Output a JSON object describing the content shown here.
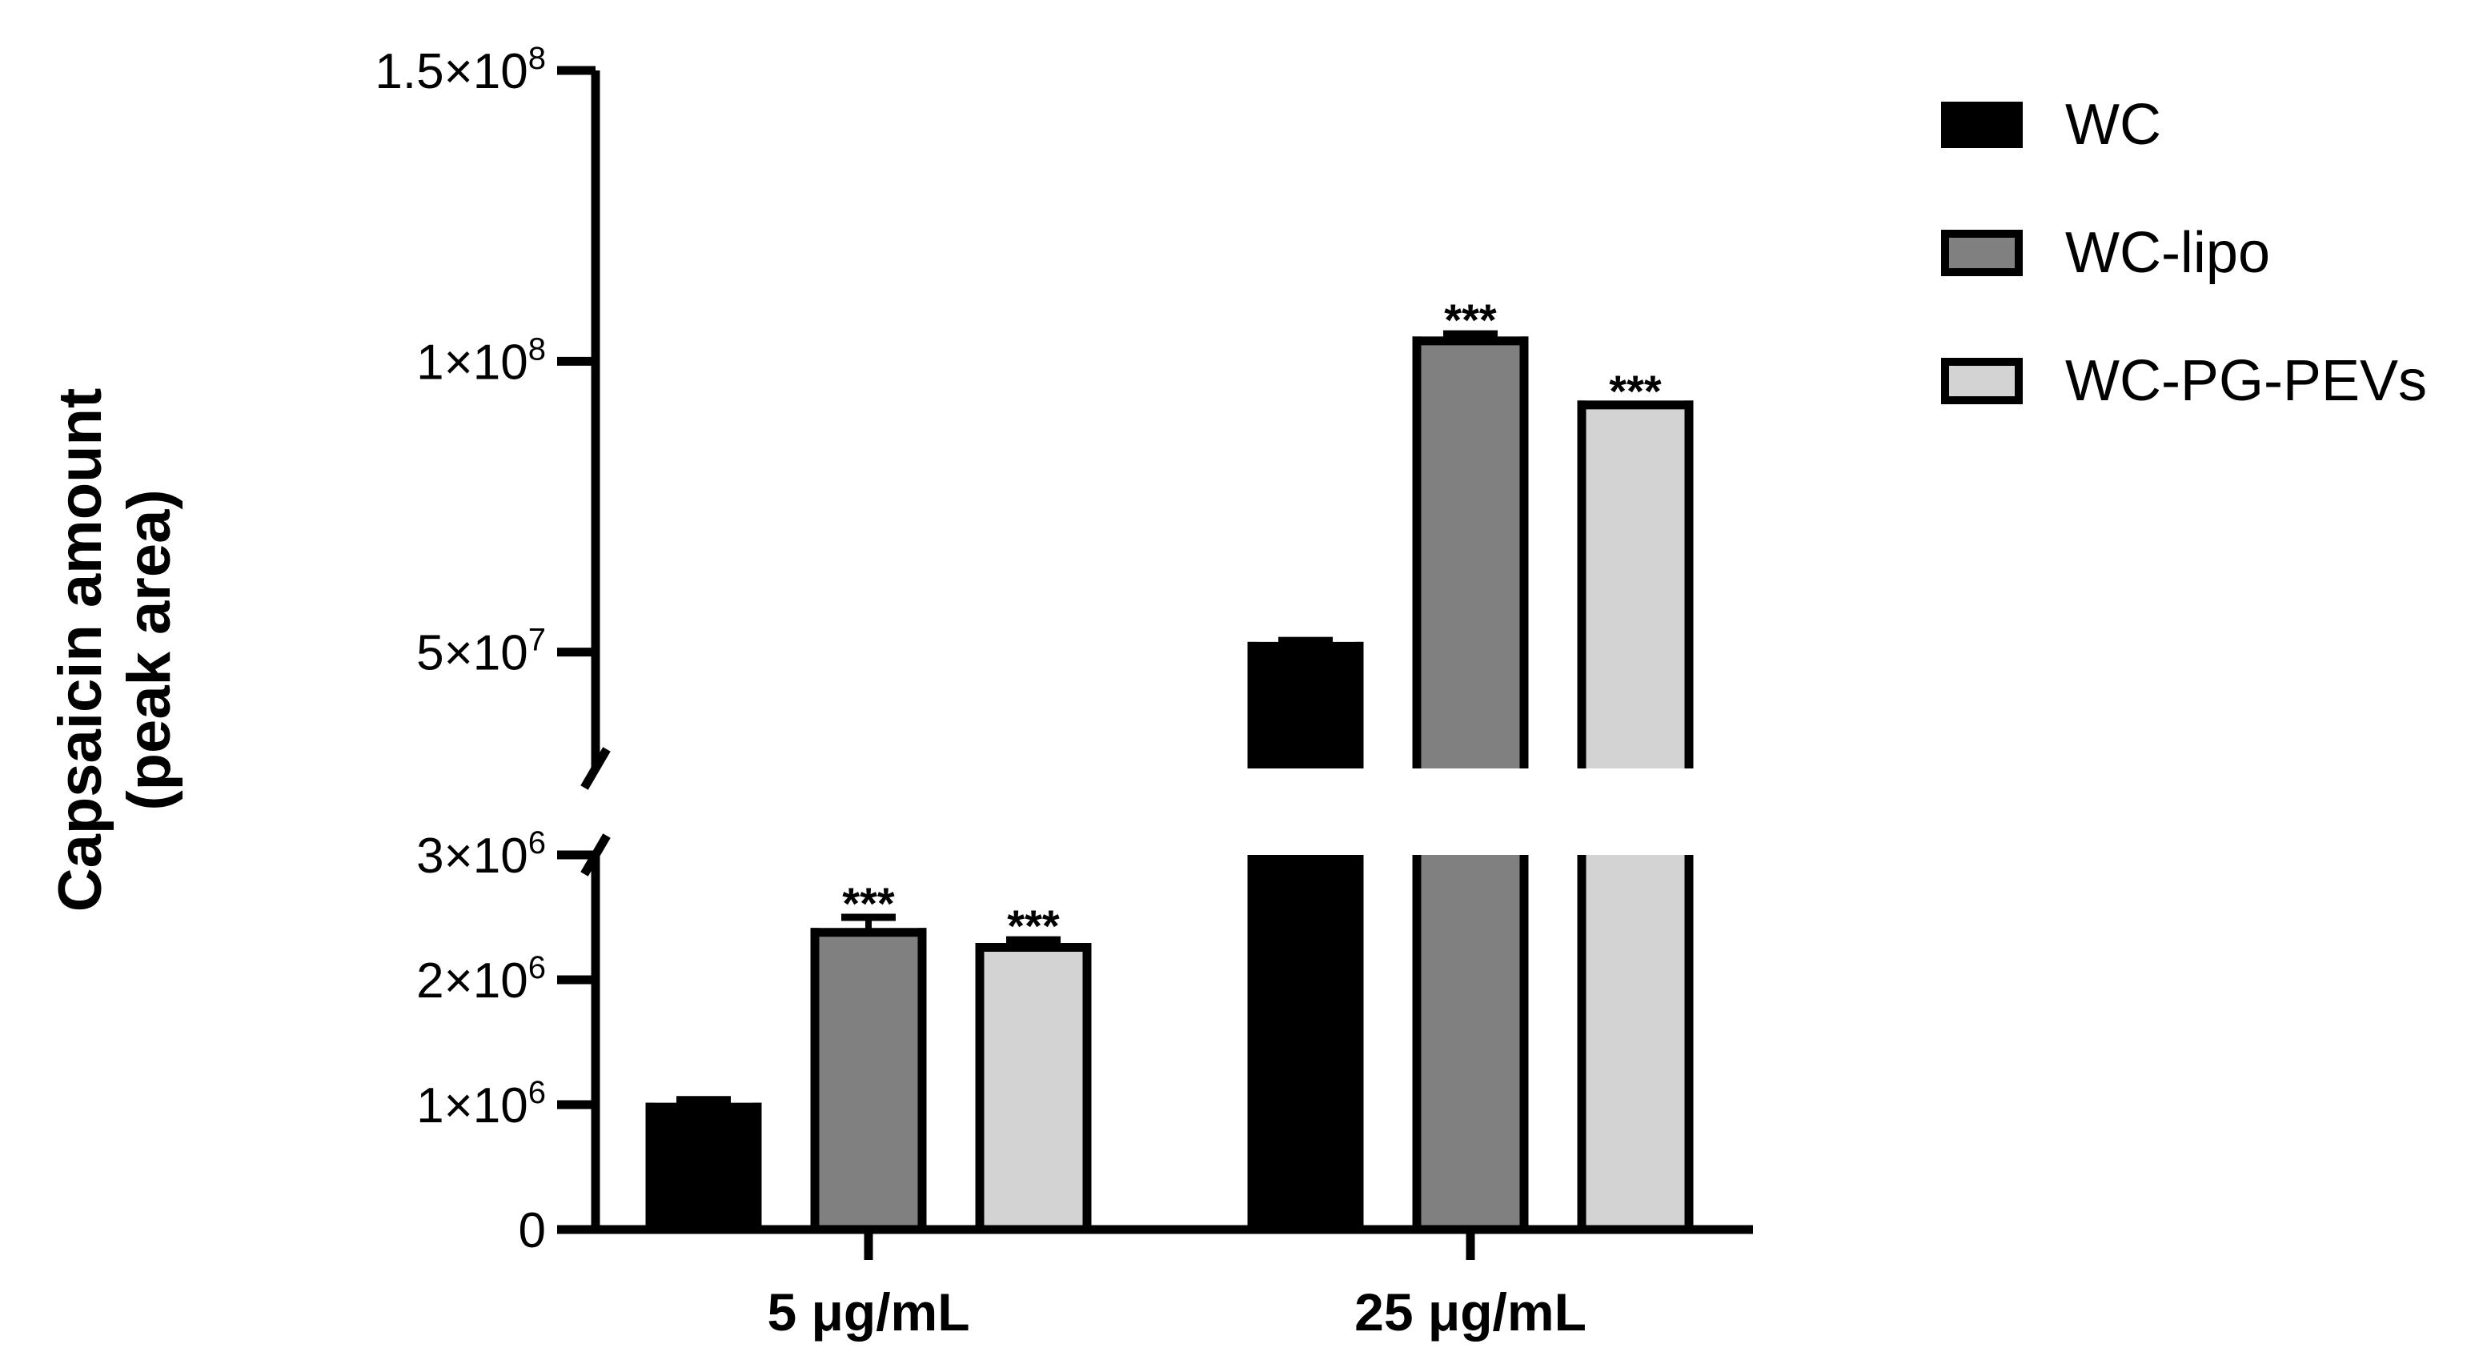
{
  "chart_data": {
    "type": "bar",
    "title": "",
    "ylabel_lines": [
      "Capsaicin amount",
      "(peak area)"
    ],
    "xlabel": "",
    "categories": [
      "5 μg/mL",
      "25 μg/mL"
    ],
    "series": [
      {
        "name": "WC",
        "color": "#000000",
        "values": [
          980000,
          51000000
        ],
        "errors": [
          60000,
          1000000
        ]
      },
      {
        "name": "WC-lipo",
        "color": "#808080",
        "values": [
          2380000,
          103500000
        ],
        "errors": [
          120000,
          1200000
        ]
      },
      {
        "name": "WC-PG-PEVs",
        "color": "#d3d3d3",
        "values": [
          2260000,
          92500000
        ],
        "errors": [
          60000,
          0
        ]
      }
    ],
    "significance": [
      [
        "",
        "***",
        "***"
      ],
      [
        "",
        "***",
        "***"
      ]
    ],
    "y_axis": {
      "broken": true,
      "lower_range": [
        0,
        3000000
      ],
      "upper_range": [
        30000000,
        150000000
      ],
      "lower_ticks": [
        {
          "value": 0,
          "mantissa": "0",
          "exponent": ""
        },
        {
          "value": 1000000,
          "mantissa": "1×10",
          "exponent": "6"
        },
        {
          "value": 2000000,
          "mantissa": "2×10",
          "exponent": "6"
        },
        {
          "value": 3000000,
          "mantissa": "3×10",
          "exponent": "6"
        }
      ],
      "upper_ticks": [
        {
          "value": 50000000,
          "mantissa": "5×10",
          "exponent": "7"
        },
        {
          "value": 100000000,
          "mantissa": "1×10",
          "exponent": "8"
        },
        {
          "value": 150000000,
          "mantissa": "1.5×10",
          "exponent": "8"
        }
      ]
    },
    "legend_position": "top-right"
  }
}
